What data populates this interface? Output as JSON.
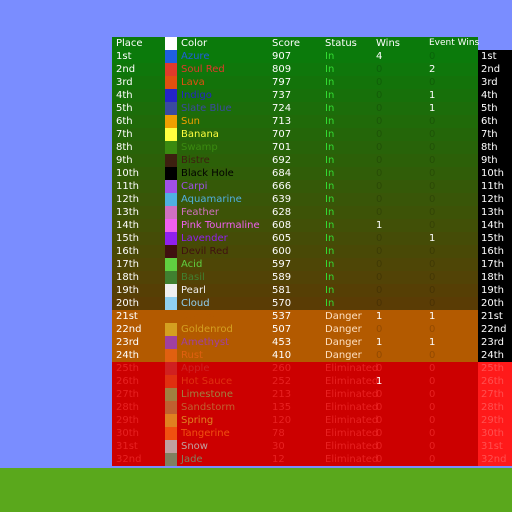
{
  "header": {
    "place": "Place",
    "color": "Color",
    "score": "Score",
    "status": "Status",
    "wins": "Wins",
    "event_wins": "Event Wins"
  },
  "rows": [
    [
      "1st",
      "#1f5fe0",
      "Azure",
      907,
      "In",
      4,
      0
    ],
    [
      "2nd",
      "#e03a2a",
      "Soul Red",
      809,
      "In",
      0,
      2
    ],
    [
      "3rd",
      "#e05010",
      "Lava",
      797,
      "In",
      0,
      0
    ],
    [
      "4th",
      "#2424c8",
      "Indigo",
      737,
      "In",
      0,
      1
    ],
    [
      "5th",
      "#3a4aa0",
      "Slate Blue",
      724,
      "In",
      0,
      1
    ],
    [
      "6th",
      "#f0a000",
      "Sun",
      713,
      "In",
      0,
      0
    ],
    [
      "7th",
      "#ffff40",
      "Banana",
      707,
      "In",
      0,
      0
    ],
    [
      "8th",
      "#3a8a10",
      "Swamp",
      701,
      "In",
      0,
      0
    ],
    [
      "9th",
      "#3d2010",
      "Bistre",
      692,
      "In",
      0,
      0
    ],
    [
      "10th",
      "#000000",
      "Black Hole",
      684,
      "In",
      0,
      0
    ],
    [
      "11th",
      "#a050e8",
      "Carpi",
      666,
      "In",
      0,
      0
    ],
    [
      "12th",
      "#50b0e0",
      "Aquamarine",
      639,
      "In",
      0,
      0
    ],
    [
      "13th",
      "#d070c0",
      "Feather",
      628,
      "In",
      0,
      0
    ],
    [
      "14th",
      "#f060f0",
      "Pink Tourmaline",
      608,
      "In",
      1,
      0
    ],
    [
      "15th",
      "#9020f0",
      "Lavender",
      605,
      "In",
      0,
      1
    ],
    [
      "16th",
      "#401010",
      "Devil Red",
      600,
      "In",
      0,
      0
    ],
    [
      "17th",
      "#60d040",
      "Acid",
      597,
      "In",
      0,
      0
    ],
    [
      "18th",
      "#408030",
      "Basil",
      589,
      "In",
      0,
      0
    ],
    [
      "19th",
      "#f0f0f0",
      "Pearl",
      581,
      "In",
      0,
      0
    ],
    [
      "20th",
      "#90d0f0",
      "Cloud",
      570,
      "In",
      0,
      0
    ],
    [
      "21st",
      "#b35a00",
      "Orange",
      537,
      "Danger",
      1,
      1
    ],
    [
      "22nd",
      "#d4a020",
      "Goldenrod",
      507,
      "Danger",
      0,
      0
    ],
    [
      "23rd",
      "#a040a0",
      "Amethyst",
      453,
      "Danger",
      1,
      1
    ],
    [
      "24th",
      "#e06010",
      "Rust",
      410,
      "Danger",
      0,
      0
    ],
    [
      "25th",
      "#d02020",
      "Apple",
      260,
      "Eliminated",
      0,
      0
    ],
    [
      "26th",
      "#e03010",
      "Hot Sauce",
      252,
      "Eliminated",
      1,
      0
    ],
    [
      "27th",
      "#a08040",
      "Limestone",
      213,
      "Eliminated",
      0,
      0
    ],
    [
      "28th",
      "#c06030",
      "Sandstorm",
      135,
      "Eliminated",
      0,
      0
    ],
    [
      "29th",
      "#e08020",
      "Spring",
      120,
      "Eliminated",
      0,
      0
    ],
    [
      "30th",
      "#f05010",
      "Tangerine",
      78,
      "Eliminated",
      0,
      0
    ],
    [
      "31st",
      "#c0a0a0",
      "Snow",
      30,
      "Eliminated",
      0,
      0
    ],
    [
      "32nd",
      "#808060",
      "Jade",
      12,
      "Eliminated",
      0,
      0
    ]
  ]
}
